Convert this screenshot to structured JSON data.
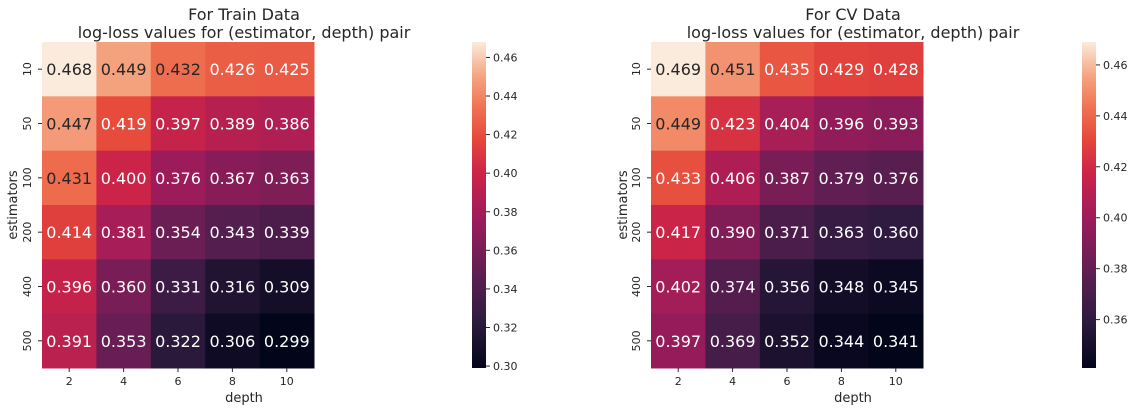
{
  "chart_data": [
    {
      "type": "heatmap",
      "title": "For Train Data",
      "subtitle": "log-loss values for (estimator, depth) pair",
      "xlabel": "depth",
      "ylabel": "estimators",
      "x": [
        2,
        4,
        6,
        8,
        10
      ],
      "y": [
        10,
        50,
        100,
        200,
        400,
        500
      ],
      "values": [
        [
          0.468,
          0.449,
          0.432,
          0.426,
          0.425
        ],
        [
          0.447,
          0.419,
          0.397,
          0.389,
          0.386
        ],
        [
          0.431,
          0.4,
          0.376,
          0.367,
          0.363
        ],
        [
          0.414,
          0.381,
          0.354,
          0.343,
          0.339
        ],
        [
          0.396,
          0.36,
          0.331,
          0.316,
          0.309
        ],
        [
          0.391,
          0.353,
          0.322,
          0.306,
          0.299
        ]
      ],
      "value_labels": [
        [
          "0.468",
          "0.449",
          "0.432",
          "0.426",
          "0.425"
        ],
        [
          "0.447",
          "0.419",
          "0.397",
          "0.389",
          "0.386"
        ],
        [
          "0.431",
          "0.400",
          "0.376",
          "0.367",
          "0.363"
        ],
        [
          "0.414",
          "0.381",
          "0.354",
          "0.343",
          "0.339"
        ],
        [
          "0.396",
          "0.360",
          "0.331",
          "0.316",
          "0.309"
        ],
        [
          "0.391",
          "0.353",
          "0.322",
          "0.306",
          "0.299"
        ]
      ],
      "colormap": "rocket",
      "colorbar": {
        "vmin": 0.299,
        "vmax": 0.468,
        "ticks": [
          0.3,
          0.32,
          0.34,
          0.36,
          0.38,
          0.4,
          0.42,
          0.44,
          0.46
        ],
        "tick_labels": [
          "0.30",
          "0.32",
          "0.34",
          "0.36",
          "0.38",
          "0.40",
          "0.42",
          "0.44",
          "0.46"
        ]
      }
    },
    {
      "type": "heatmap",
      "title": "For CV Data",
      "subtitle": "log-loss values for (estimator, depth) pair",
      "xlabel": "depth",
      "ylabel": "estimators",
      "x": [
        2,
        4,
        6,
        8,
        10
      ],
      "y": [
        10,
        50,
        100,
        200,
        400,
        500
      ],
      "values": [
        [
          0.469,
          0.451,
          0.435,
          0.429,
          0.428
        ],
        [
          0.449,
          0.423,
          0.404,
          0.396,
          0.393
        ],
        [
          0.433,
          0.406,
          0.387,
          0.379,
          0.376
        ],
        [
          0.417,
          0.39,
          0.371,
          0.363,
          0.36
        ],
        [
          0.402,
          0.374,
          0.356,
          0.348,
          0.345
        ],
        [
          0.397,
          0.369,
          0.352,
          0.344,
          0.341
        ]
      ],
      "value_labels": [
        [
          "0.469",
          "0.451",
          "0.435",
          "0.429",
          "0.428"
        ],
        [
          "0.449",
          "0.423",
          "0.404",
          "0.396",
          "0.393"
        ],
        [
          "0.433",
          "0.406",
          "0.387",
          "0.379",
          "0.376"
        ],
        [
          "0.417",
          "0.390",
          "0.371",
          "0.363",
          "0.360"
        ],
        [
          "0.402",
          "0.374",
          "0.356",
          "0.348",
          "0.345"
        ],
        [
          "0.397",
          "0.369",
          "0.352",
          "0.344",
          "0.341"
        ]
      ],
      "colormap": "rocket",
      "colorbar": {
        "vmin": 0.341,
        "vmax": 0.469,
        "ticks": [
          0.36,
          0.38,
          0.4,
          0.42,
          0.44,
          0.46
        ],
        "tick_labels": [
          "0.36",
          "0.38",
          "0.40",
          "0.42",
          "0.44",
          "0.46"
        ]
      }
    }
  ]
}
